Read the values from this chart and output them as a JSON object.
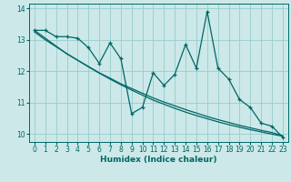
{
  "xlabel": "Humidex (Indice chaleur)",
  "ylabel": "",
  "bg_color": "#cce8e8",
  "grid_color": "#99cccc",
  "line_color": "#006666",
  "xlim": [
    -0.5,
    23.5
  ],
  "ylim": [
    9.75,
    14.15
  ],
  "yticks": [
    10,
    11,
    12,
    13,
    14
  ],
  "xticks": [
    0,
    1,
    2,
    3,
    4,
    5,
    6,
    7,
    8,
    9,
    10,
    11,
    12,
    13,
    14,
    15,
    16,
    17,
    18,
    19,
    20,
    21,
    22,
    23
  ],
  "x": [
    0,
    1,
    2,
    3,
    4,
    5,
    6,
    7,
    8,
    9,
    10,
    11,
    12,
    13,
    14,
    15,
    16,
    17,
    18,
    19,
    20,
    21,
    22,
    23
  ],
  "y_main": [
    13.3,
    13.3,
    13.1,
    13.1,
    13.05,
    12.75,
    12.25,
    12.9,
    12.4,
    10.65,
    10.85,
    11.95,
    11.55,
    11.9,
    12.85,
    12.1,
    13.9,
    12.1,
    11.75,
    11.1,
    10.85,
    10.35,
    10.25,
    9.9
  ],
  "y_trend1": [
    13.3,
    13.05,
    12.8,
    12.55,
    12.35,
    12.15,
    11.95,
    11.78,
    11.6,
    11.45,
    11.3,
    11.15,
    11.02,
    10.9,
    10.78,
    10.67,
    10.56,
    10.46,
    10.37,
    10.28,
    10.2,
    10.12,
    10.05,
    9.95
  ],
  "y_trend2": [
    13.25,
    13.0,
    12.78,
    12.56,
    12.35,
    12.14,
    11.94,
    11.75,
    11.57,
    11.4,
    11.24,
    11.08,
    10.95,
    10.82,
    10.7,
    10.59,
    10.49,
    10.39,
    10.3,
    10.22,
    10.14,
    10.07,
    10.0,
    9.93
  ]
}
